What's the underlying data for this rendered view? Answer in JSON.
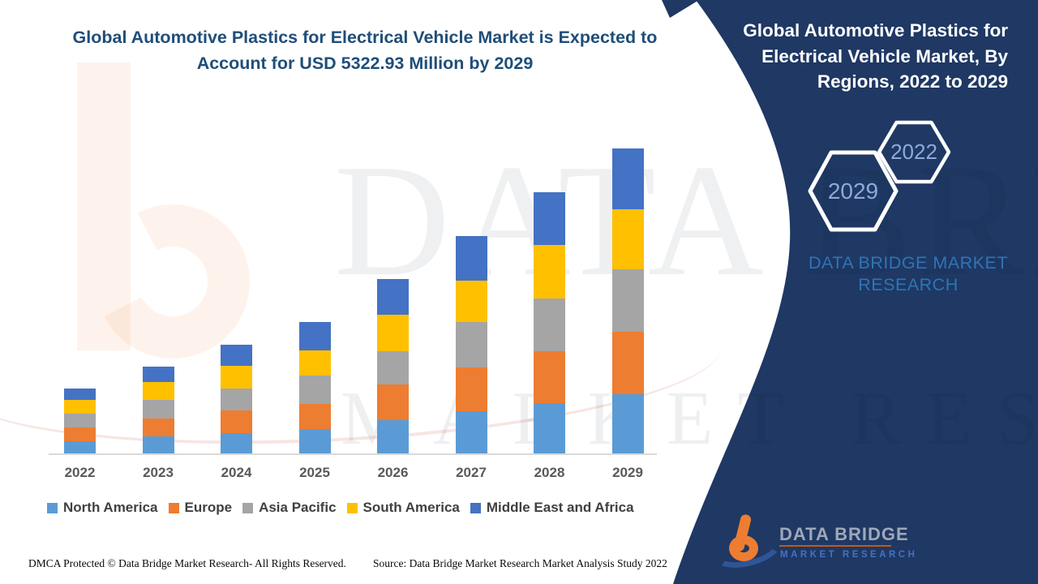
{
  "header": {
    "title_lines": [
      "Global Automotive Plastics for Electrical Vehicle Market is Expected to",
      "Account for USD 5322.93 Million by 2029"
    ]
  },
  "right_panel": {
    "panel_color": "#1F3864",
    "title_lines": [
      "Global Automotive Plastics for",
      "Electrical Vehicle Market, By",
      "Regions, 2022 to 2029"
    ],
    "hexagon_back_label": "2029",
    "hexagon_front_label": "2022",
    "brand_text": "DATA BRIDGE MARKET RESEARCH"
  },
  "watermarks": {
    "big_text_1": "DATA BRIDGE",
    "big_text_2": "MARKET RESEARCH"
  },
  "chart_data": {
    "type": "bar",
    "subtype": "stacked-vertical",
    "title": "Global Automotive Plastics for Electrical Vehicle Market is Expected to Account for USD 5322.93 Million by 2029",
    "unit_note": "values estimated from bar heights, USD Million; only 2029 total (5322.93) labeled in source",
    "categories": [
      "2022",
      "2023",
      "2024",
      "2025",
      "2026",
      "2027",
      "2028",
      "2029"
    ],
    "series": [
      {
        "name": "North America",
        "color": "#5B9BD5",
        "values": [
          212,
          297,
          354,
          425,
          580,
          736,
          878,
          1033
        ]
      },
      {
        "name": "Europe",
        "color": "#ED7D31",
        "values": [
          241,
          311,
          396,
          439,
          623,
          764,
          906,
          1090
        ]
      },
      {
        "name": "Asia Pacific",
        "color": "#A5A5A5",
        "values": [
          241,
          326,
          382,
          495,
          580,
          793,
          920,
          1090
        ]
      },
      {
        "name": "South America",
        "color": "#FFC000",
        "values": [
          241,
          311,
          396,
          439,
          637,
          722,
          934,
          1048
        ]
      },
      {
        "name": "Middle East and Africa",
        "color": "#4472C4",
        "values": [
          198,
          269,
          372,
          490,
          623,
          783,
          920,
          1062
        ]
      }
    ],
    "totals_estimated": [
      1133,
      1514,
      1900,
      2288,
      3043,
      3798,
      4558,
      5322.93
    ],
    "y_axis": "hidden (no ticks or gridlines)",
    "legend_position": "bottom"
  },
  "footer": {
    "dmca": "DMCA Protected © Data Bridge Market Research- All Rights Reserved.",
    "source": "Source: Data Bridge Market Research Market Analysis Study 2022",
    "logo_brand": "DATA BRIDGE",
    "logo_sub": "MARKET RESEARCH"
  }
}
